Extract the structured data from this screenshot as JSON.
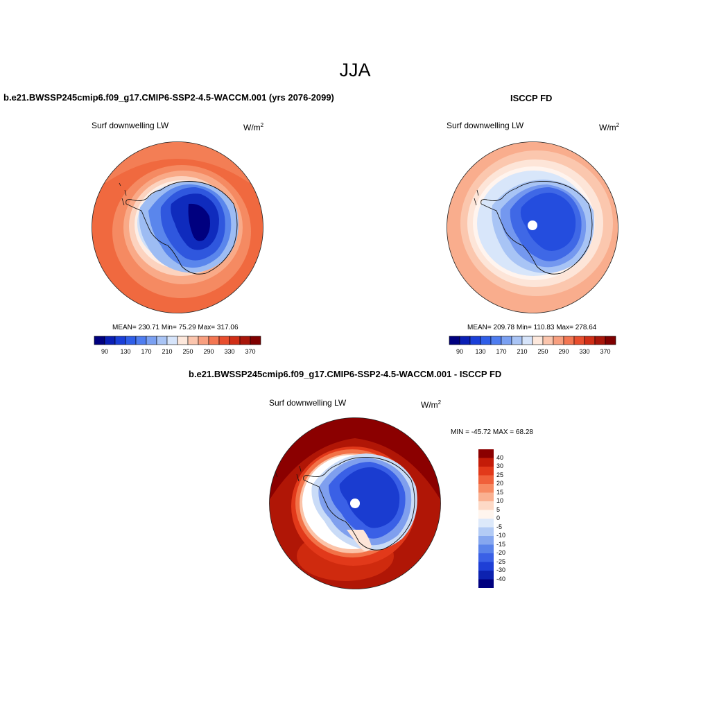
{
  "page": {
    "title": "JJA"
  },
  "panels": [
    {
      "title": "b.e21.BWSSP245cmip6.f09_g17.CMIP6-SSP2-4.5-WACCM.001 (yrs 2076-2099)",
      "variable": "Surf downwelling LW",
      "units": "W/m",
      "units_exp": "2",
      "stats": "MEAN= 230.71  Min=  75.29  Max= 317.06",
      "has_missing_pole": false
    },
    {
      "title": "ISCCP FD",
      "variable": "Surf downwelling LW",
      "units": "W/m",
      "units_exp": "2",
      "stats": "MEAN= 209.78  Min= 110.83  Max= 278.64",
      "has_missing_pole": true
    },
    {
      "title": "b.e21.BWSSP245cmip6.f09_g17.CMIP6-SSP2-4.5-WACCM.001 - ISCCP FD",
      "variable": "Surf downwelling LW",
      "units": "W/m",
      "units_exp": "2",
      "stats": "MIN = -45.72 MAX =  68.28",
      "has_missing_pole": true
    }
  ],
  "colorbar_abs": {
    "ticks": [
      "90",
      "130",
      "170",
      "210",
      "250",
      "290",
      "330",
      "370"
    ],
    "colors": [
      "#00007f",
      "#0a1fb5",
      "#1a3fd8",
      "#2f5ee8",
      "#4f7df0",
      "#7aa0f2",
      "#a9c4f5",
      "#d6e4fa",
      "#fde8dc",
      "#fbc5ad",
      "#f89f7f",
      "#f37652",
      "#e84e2e",
      "#d02e16",
      "#a8160a",
      "#7f0000"
    ]
  },
  "colorbar_diff": {
    "ticks": [
      "40",
      "30",
      "25",
      "20",
      "15",
      "10",
      "5",
      "0",
      "-5",
      "-10",
      "-15",
      "-20",
      "-25",
      "-30",
      "-40"
    ],
    "colors": [
      "#8b0000",
      "#c41c08",
      "#e2391a",
      "#f0603a",
      "#f78a62",
      "#fab191",
      "#fdd9c6",
      "#fff5ee",
      "#dde9fa",
      "#b3cbf5",
      "#86a7ef",
      "#5a83ea",
      "#3a60e6",
      "#1e3fd6",
      "#0c22b0",
      "#00007f"
    ]
  }
}
